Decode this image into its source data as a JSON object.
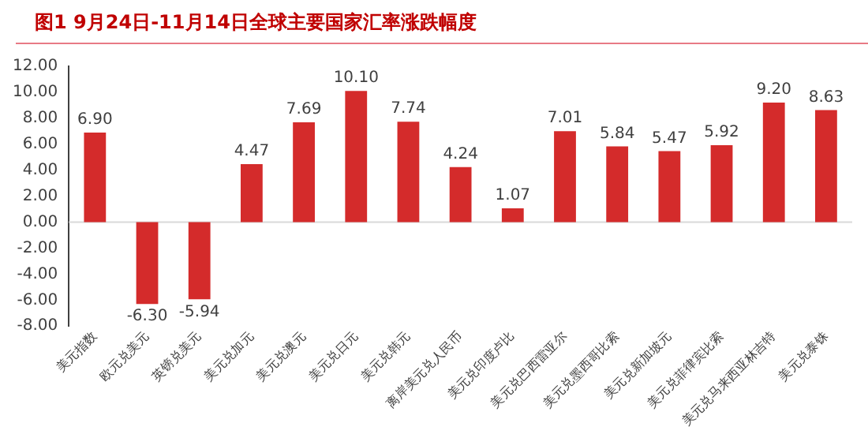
{
  "chart_data": {
    "type": "bar",
    "title": "图1   9月24日-11月14日全球主要国家汇率涨跌幅度",
    "categories": [
      "美元指数",
      "欧元兑美元",
      "英镑兑美元",
      "美元兑加元",
      "美元兑澳元",
      "美元兑日元",
      "美元兑韩元",
      "离岸美元兑人民币",
      "美元兑印度卢比",
      "美元兑巴西雷亚尔",
      "美元兑墨西哥比索",
      "美元兑新加坡元",
      "美元兑菲律宾比索",
      "美元兑马来西亚林吉特",
      "美元兑泰铢"
    ],
    "values": [
      6.9,
      -6.3,
      -5.94,
      4.47,
      7.69,
      10.1,
      7.74,
      4.24,
      1.07,
      7.01,
      5.84,
      5.47,
      5.92,
      9.2,
      8.63
    ],
    "color": "#d42b2b",
    "ylim": [
      -8,
      12
    ],
    "yticks": [
      {
        "value": -8,
        "label": "-8.00"
      },
      {
        "value": -6,
        "label": "-6.00"
      },
      {
        "value": -4,
        "label": "-4.00"
      },
      {
        "value": -2,
        "label": "-2.00"
      },
      {
        "value": 0,
        "label": "0.00"
      },
      {
        "value": 2,
        "label": "2.00"
      },
      {
        "value": 4,
        "label": "4.00"
      },
      {
        "value": 6,
        "label": "6.00"
      },
      {
        "value": 8,
        "label": "8.00"
      },
      {
        "value": 10,
        "label": "10.00"
      },
      {
        "value": 12,
        "label": "12.00"
      }
    ],
    "value_labels": [
      "6.90",
      "-6.30",
      "-5.94",
      "4.47",
      "7.69",
      "10.10",
      "7.74",
      "4.24",
      "1.07",
      "7.01",
      "5.84",
      "5.47",
      "5.92",
      "9.20",
      "8.63"
    ],
    "ref_lines": [
      {
        "axis": "y",
        "value": 0,
        "color": "#d9d9d9"
      }
    ],
    "grid": false,
    "legend": false
  }
}
